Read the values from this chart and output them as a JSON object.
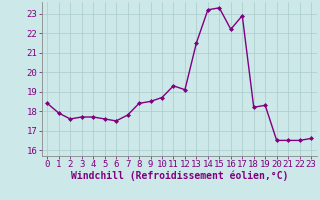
{
  "x": [
    0,
    1,
    2,
    3,
    4,
    5,
    6,
    7,
    8,
    9,
    10,
    11,
    12,
    13,
    14,
    15,
    16,
    17,
    18,
    19,
    20,
    21,
    22,
    23
  ],
  "y": [
    18.4,
    17.9,
    17.6,
    17.7,
    17.7,
    17.6,
    17.5,
    17.8,
    18.4,
    18.5,
    18.7,
    19.3,
    19.1,
    21.5,
    23.2,
    23.3,
    22.2,
    22.9,
    18.2,
    18.3,
    16.5,
    16.5,
    16.5,
    16.6
  ],
  "line_color": "#800080",
  "marker": "D",
  "marker_size": 2.0,
  "bg_color": "#cce8e8",
  "grid_color": "#aacccc",
  "xlabel": "Windchill (Refroidissement éolien,°C)",
  "ylim": [
    15.7,
    23.6
  ],
  "xlim": [
    -0.5,
    23.5
  ],
  "yticks": [
    16,
    17,
    18,
    19,
    20,
    21,
    22,
    23
  ],
  "xticks": [
    0,
    1,
    2,
    3,
    4,
    5,
    6,
    7,
    8,
    9,
    10,
    11,
    12,
    13,
    14,
    15,
    16,
    17,
    18,
    19,
    20,
    21,
    22,
    23
  ],
  "tick_color": "#800080",
  "tick_fontsize": 6.5,
  "xlabel_fontsize": 7.0,
  "line_width": 1.0
}
